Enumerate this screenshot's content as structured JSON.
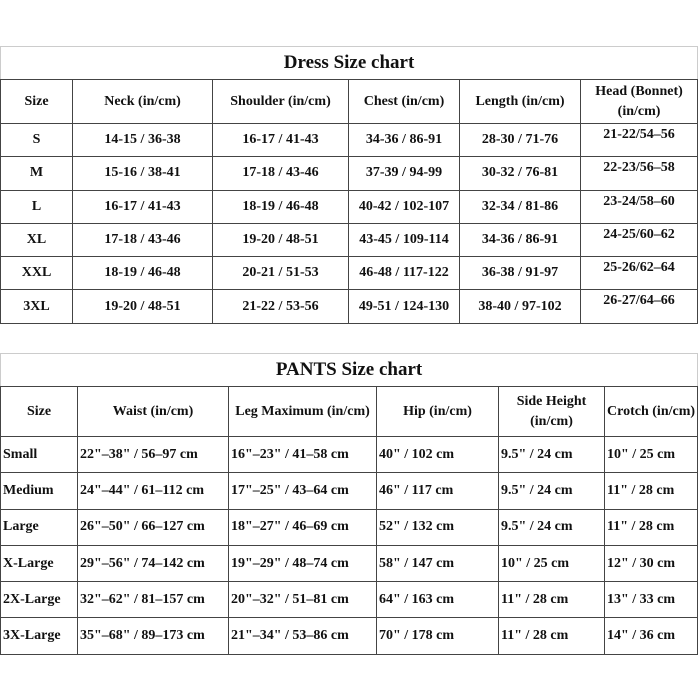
{
  "dress": {
    "title": "Dress Size chart",
    "headers": [
      "Size",
      "Neck (in/cm)",
      "Shoulder (in/cm)",
      "Chest (in/cm)",
      "Length (in/cm)",
      "Head (Bonnet) (in/cm)"
    ],
    "rows": [
      [
        "S",
        "14-15 / 36-38",
        "16-17 / 41-43",
        "34-36 / 86-91",
        "28-30 / 71-76",
        "21-22/54–56"
      ],
      [
        "M",
        "15-16 / 38-41",
        "17-18 / 43-46",
        "37-39 / 94-99",
        "30-32 / 76-81",
        "22-23/56–58"
      ],
      [
        "L",
        "16-17 / 41-43",
        "18-19 / 46-48",
        "40-42 / 102-107",
        "32-34 / 81-86",
        "23-24/58–60"
      ],
      [
        "XL",
        "17-18 / 43-46",
        "19-20 / 48-51",
        "43-45 / 109-114",
        "34-36 / 86-91",
        "24-25/60–62"
      ],
      [
        "XXL",
        "18-19 / 46-48",
        "20-21 / 51-53",
        "46-48 / 117-122",
        "36-38 / 91-97",
        "25-26/62–64"
      ],
      [
        "3XL",
        "19-20 / 48-51",
        "21-22 / 53-56",
        "49-51 / 124-130",
        "38-40 / 97-102",
        "26-27/64–66"
      ]
    ]
  },
  "pants": {
    "title": "PANTS Size chart",
    "headers": [
      "Size",
      "Waist (in/cm)",
      "Leg Maximum (in/cm)",
      "Hip (in/cm)",
      "Side Height (in/cm)",
      "Crotch (in/cm)"
    ],
    "rows": [
      [
        "Small",
        "22\"–38\" / 56–97 cm",
        "16\"–23\" / 41–58 cm",
        "40\" / 102 cm",
        "9.5\" / 24 cm",
        "10\" / 25 cm"
      ],
      [
        "Medium",
        "24\"–44\" / 61–112 cm",
        "17\"–25\" / 43–64 cm",
        "46\" / 117 cm",
        "9.5\" / 24 cm",
        "11\" / 28 cm"
      ],
      [
        "Large",
        "26\"–50\" / 66–127 cm",
        "18\"–27\" / 46–69 cm",
        "52\" / 132 cm",
        "9.5\" / 24 cm",
        "11\" / 28 cm"
      ],
      [
        "X-Large",
        "29\"–56\" / 74–142 cm",
        "19\"–29\" / 48–74 cm",
        "58\" / 147 cm",
        "10\" / 25 cm",
        "12\" / 30 cm"
      ],
      [
        "2X-Large",
        "32\"–62\" / 81–157 cm",
        "20\"–32\" / 51–81 cm",
        "64\" / 163 cm",
        "11\" / 28 cm",
        "13\" / 33 cm"
      ],
      [
        "3X-Large",
        "35\"–68\" / 89–173 cm",
        "21\"–34\" / 53–86 cm",
        "70\" / 178 cm",
        "11\" / 28 cm",
        "14\" / 36 cm"
      ]
    ]
  }
}
